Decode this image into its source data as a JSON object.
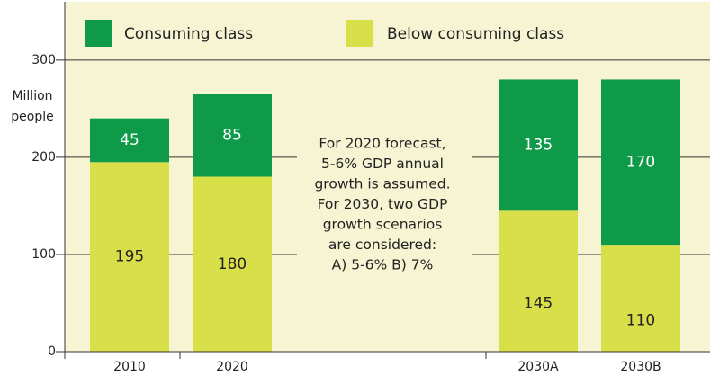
{
  "chart_data": {
    "type": "stacked_bar",
    "y_label": [
      "Million",
      "people"
    ],
    "categories": [
      "2010",
      "2020",
      "2030A",
      "2030B"
    ],
    "series": [
      {
        "name": "Below consuming class",
        "color": "#d9df48",
        "values": [
          195,
          180,
          145,
          110
        ]
      },
      {
        "name": "Consuming class",
        "color": "#0f9a4a",
        "values": [
          45,
          85,
          135,
          170
        ]
      }
    ],
    "ylim": [
      0,
      360
    ],
    "yticks": [
      0,
      100,
      200,
      300
    ],
    "grid": true,
    "annotation": [
      "For 2020 forecast,",
      "5-6% GDP annual",
      "growth is assumed.",
      "For 2030, two GDP",
      "growth scenarios",
      "are considered:",
      "A) 5-6%   B) 7%"
    ]
  }
}
